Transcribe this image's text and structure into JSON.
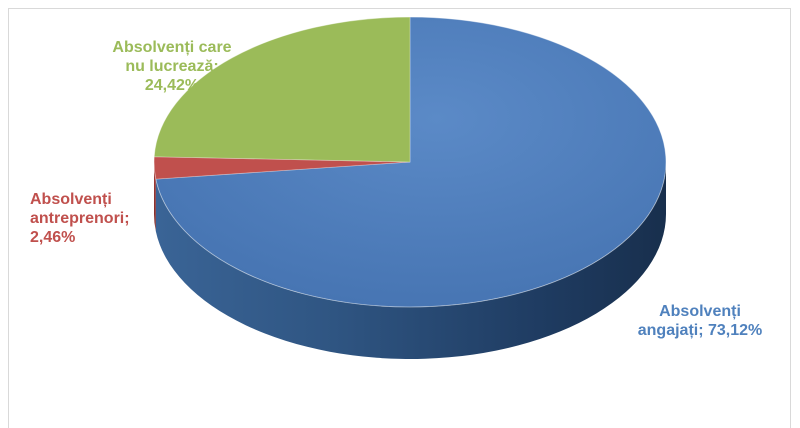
{
  "chart_data": {
    "type": "pie",
    "title": "",
    "slices": [
      {
        "label_line1": "Absolvenți",
        "label_line2": "angajați; 73,12%",
        "label_line3": "",
        "value": 73.12,
        "color": "#4f81bd"
      },
      {
        "label_line1": "Absolvenți",
        "label_line2": "antreprenori;",
        "label_line3": "2,46%",
        "value": 2.46,
        "color": "#c0504d"
      },
      {
        "label_line1": "Absolvenți care",
        "label_line2": "nu lucrează;",
        "label_line3": "24,42%",
        "value": 24.42,
        "color": "#9bbb59"
      }
    ],
    "legend": "none",
    "three_d": true
  }
}
